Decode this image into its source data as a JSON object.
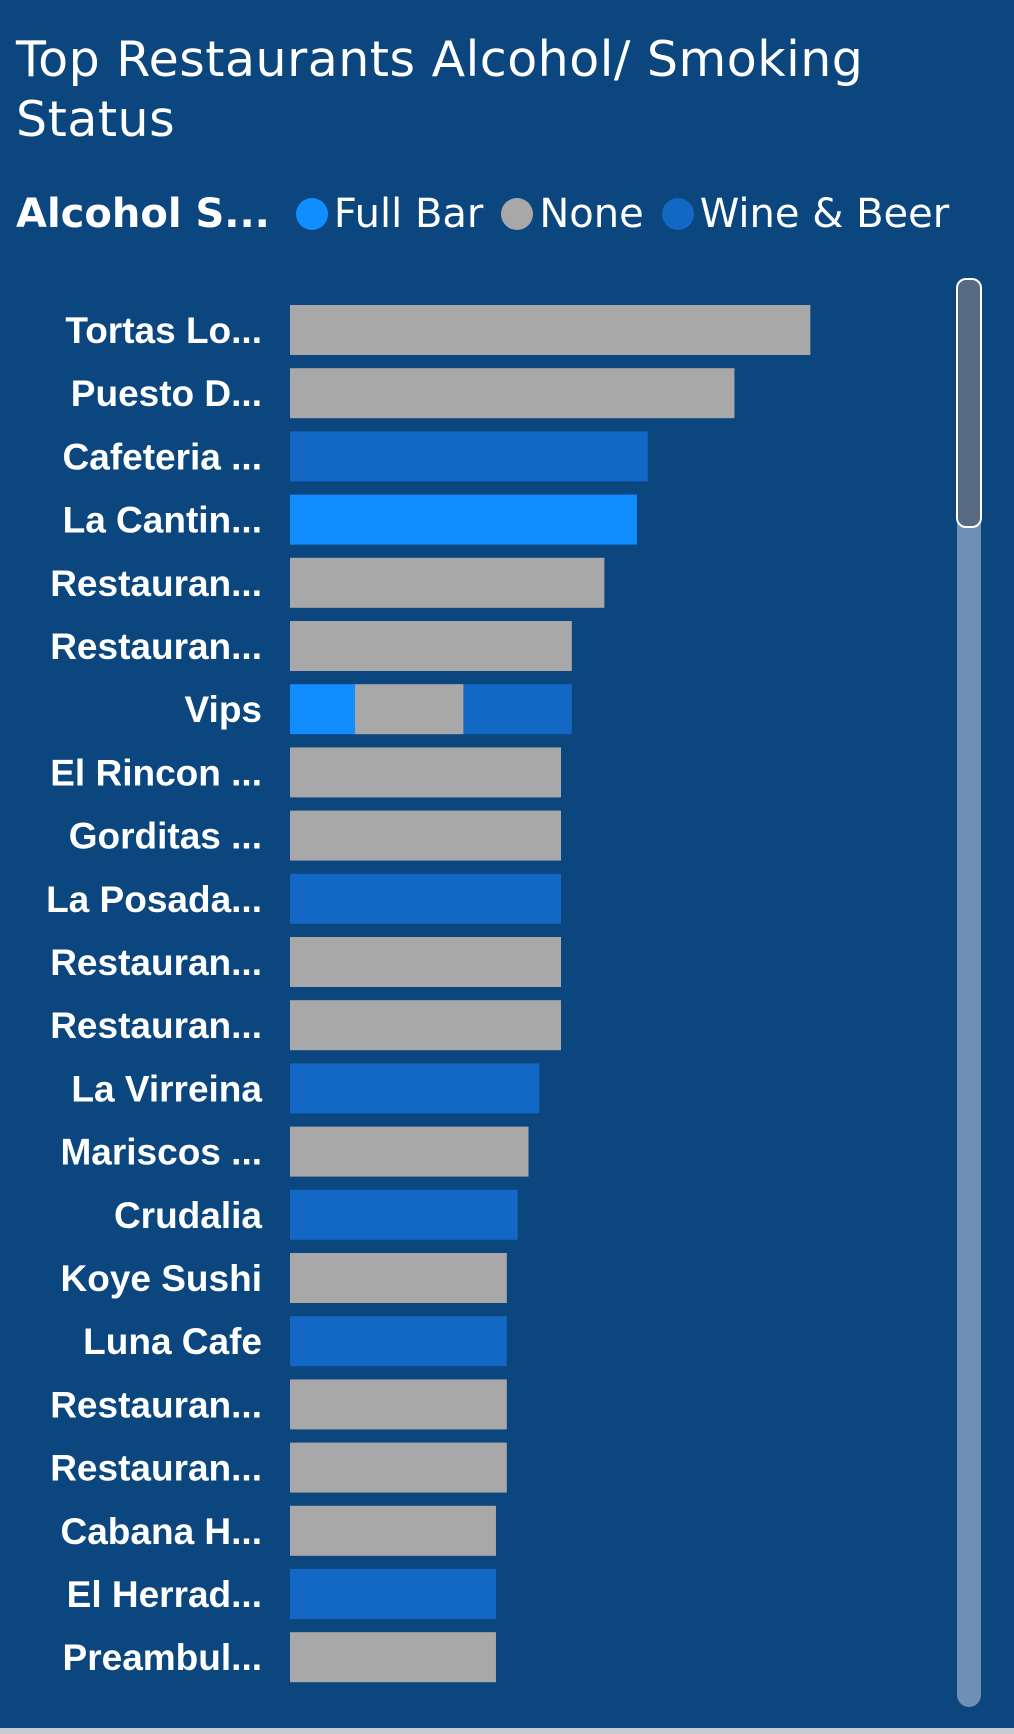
{
  "title": "Top Restaurants Alcohol/ Smoking Status",
  "legend": {
    "title": "Alcohol S...",
    "items": [
      {
        "label": "Full Bar",
        "color": "#118dff"
      },
      {
        "label": "None",
        "color": "#a8a8a8"
      },
      {
        "label": "Wine & Beer",
        "color": "#1268c4"
      }
    ]
  },
  "chart_data": {
    "type": "bar",
    "orientation": "horizontal",
    "stacked": true,
    "title": "Top Restaurants Alcohol/ Smoking Status",
    "legend_title": "Alcohol S...",
    "categories": [
      "Tortas Lo...",
      "Puesto D...",
      "Cafeteria ...",
      "La Cantin...",
      "Restauran...",
      "Restauran...",
      "Vips",
      "El Rincon ...",
      "Gorditas ...",
      "La Posada...",
      "Restauran...",
      "Restauran...",
      "La Virreina",
      "Mariscos ...",
      "Crudalia",
      "Koye Sushi",
      "Luna Cafe",
      "Restauran...",
      "Restauran...",
      "Cabana H...",
      "El Herrad...",
      "Preambul..."
    ],
    "series": [
      {
        "name": "Full Bar",
        "color": "#118dff",
        "values": [
          0,
          0,
          0,
          32,
          0,
          0,
          6,
          0,
          0,
          0,
          0,
          0,
          0,
          0,
          0,
          0,
          0,
          0,
          0,
          0,
          0,
          0
        ]
      },
      {
        "name": "None",
        "color": "#a8a8a8",
        "values": [
          48,
          41,
          0,
          0,
          29,
          26,
          10,
          25,
          25,
          0,
          25,
          25,
          0,
          22,
          0,
          20,
          0,
          20,
          20,
          19,
          0,
          19
        ]
      },
      {
        "name": "Wine & Beer",
        "color": "#1268c4",
        "values": [
          0,
          0,
          33,
          0,
          0,
          0,
          10,
          0,
          0,
          25,
          0,
          0,
          23,
          0,
          21,
          0,
          20,
          0,
          0,
          0,
          19,
          0
        ]
      }
    ],
    "xlim": [
      0,
      58
    ],
    "legend_position": "top-left"
  },
  "scrollbar": {
    "position": 0
  }
}
